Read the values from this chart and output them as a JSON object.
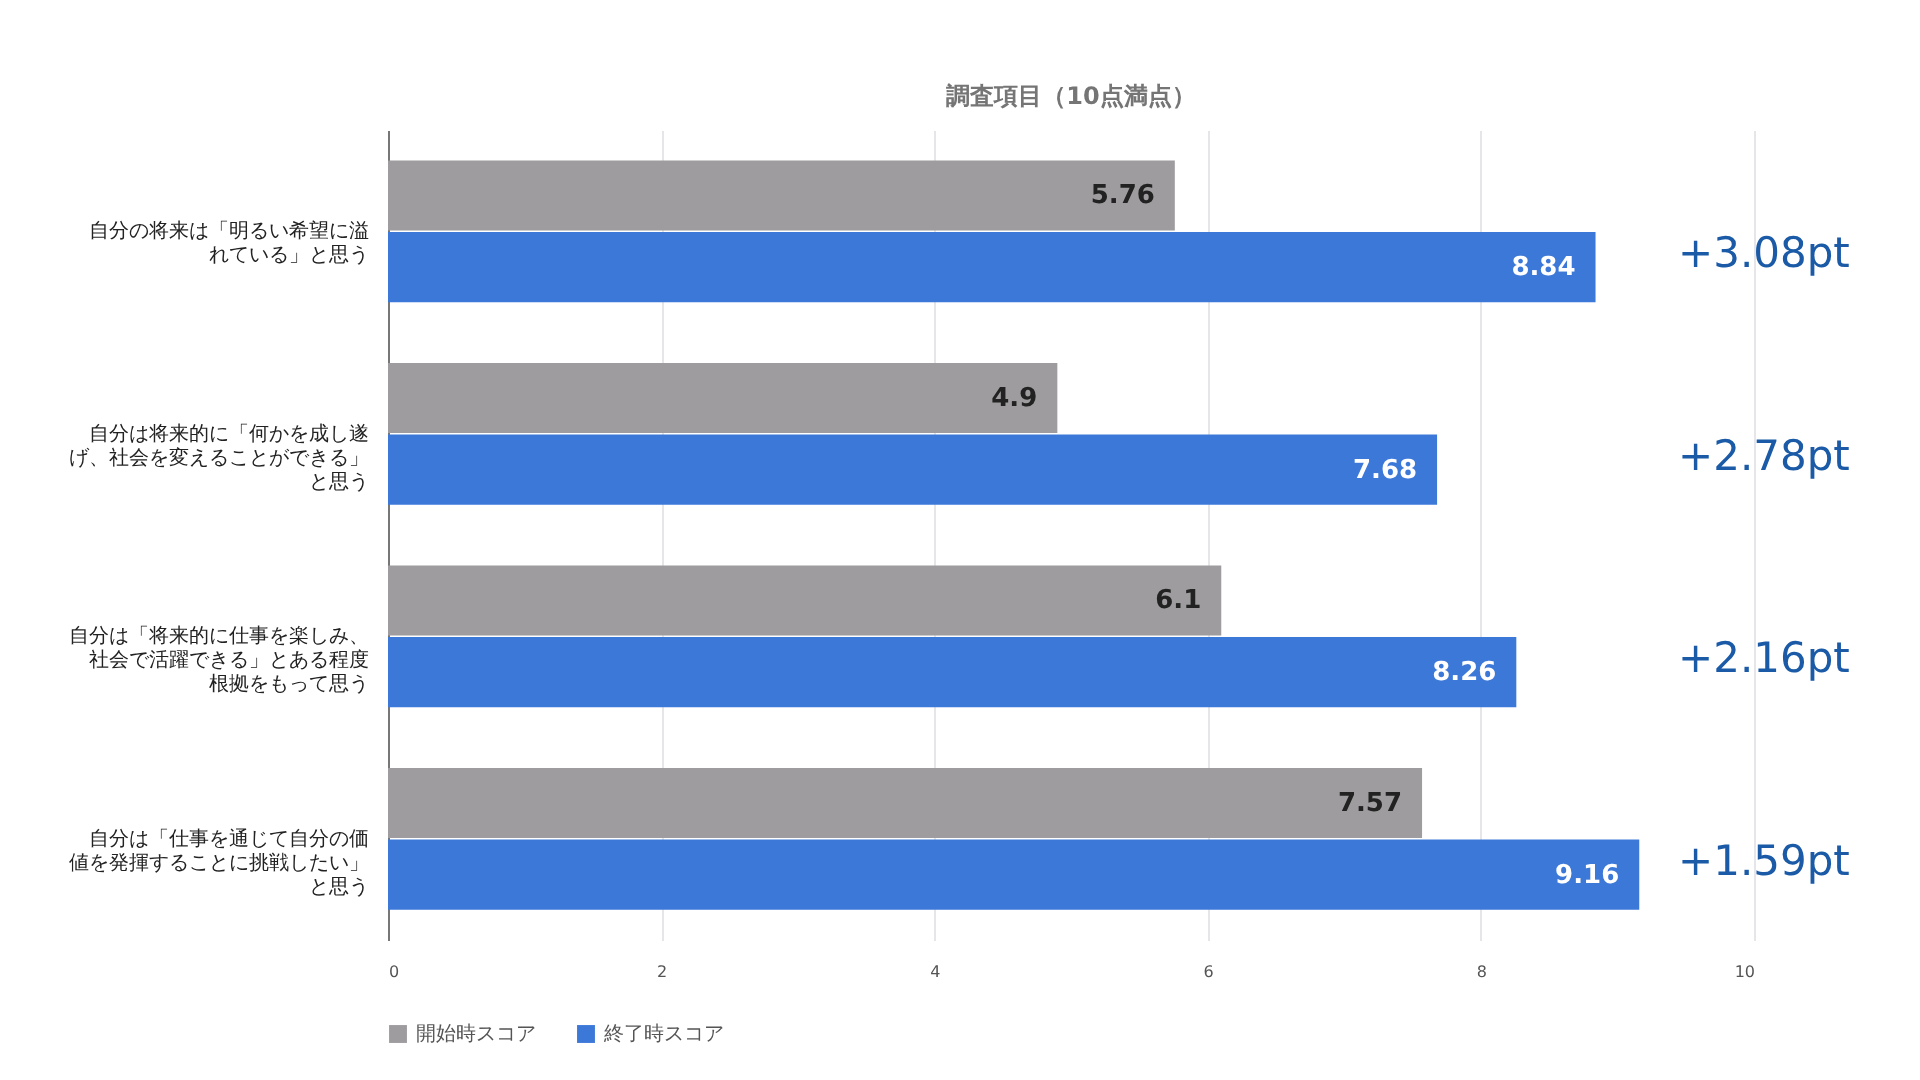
{
  "chart_data": {
    "type": "bar",
    "orientation": "horizontal",
    "title": "調査項目（10点満点）",
    "categories": [
      "自分の将来は「明るい希望に溢れている」と思う",
      "自分は将来的に「何かを成し遂げ、社会を変えることができる」と思う",
      "自分は「将来的に仕事を楽しみ、社会で活躍できる」とある程度根拠をもって思う",
      "自分は「仕事を通じて自分の価値を発揮することに挑戦したい」と思う"
    ],
    "series": [
      {
        "name": "開始時スコア",
        "color": "#9e9c9e",
        "values": [
          5.76,
          4.9,
          6.1,
          7.57
        ]
      },
      {
        "name": "終了時スコア",
        "color": "#3c78d8",
        "values": [
          8.84,
          7.68,
          8.26,
          9.16
        ]
      }
    ],
    "xlim": [
      0,
      10
    ],
    "xticks": [
      0,
      2,
      4,
      6,
      8,
      10
    ],
    "grid": "x",
    "legend": "bottom",
    "data_labels": true,
    "annotations": [
      "+3.08pt",
      "+2.78pt",
      "+2.16pt",
      "+1.59pt"
    ]
  }
}
